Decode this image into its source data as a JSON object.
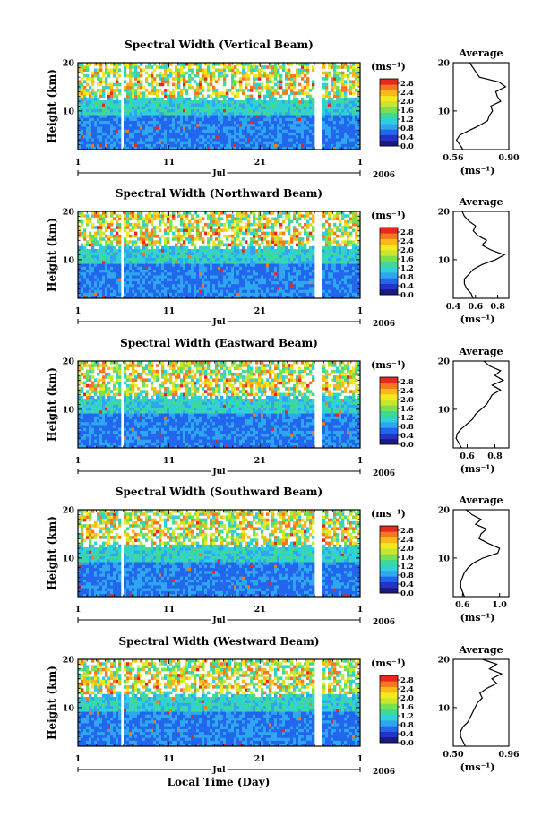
{
  "figure": {
    "xlabel": "Local Time (Day)",
    "month_label": "Jul",
    "year_label": "2006",
    "x_tick_labels": [
      "1",
      "11",
      "21",
      "1"
    ],
    "y_tick_labels": [
      "10",
      "20"
    ],
    "ylabel": "Height (km)",
    "unit_label": "(ms⁻¹)",
    "avg_title": "Average",
    "avg_unit_label": "(ms⁻¹)",
    "colorbar_ticks": [
      "0.0",
      "0.4",
      "0.8",
      "1.2",
      "1.6",
      "2.0",
      "2.4",
      "2.8"
    ],
    "colorscale": [
      "#1a1a80",
      "#2233c8",
      "#2266ee",
      "#2ea6f0",
      "#30d0d8",
      "#40d898",
      "#7ae050",
      "#c8e630",
      "#f6e820",
      "#fbb81a",
      "#f6781e",
      "#e8281e"
    ]
  },
  "chart_data": [
    {
      "type": "heatmap",
      "title": "Spectral Width (Vertical Beam)",
      "x_range_days": [
        1,
        32
      ],
      "y_range_km": [
        2,
        20
      ],
      "color_range": [
        0.0,
        3.0
      ],
      "average_profile": {
        "xlim": [
          0.56,
          0.9
        ],
        "x_tick_labels": [
          "0.56",
          "0.90"
        ],
        "height_km": [
          2,
          3,
          4,
          5,
          6,
          7,
          8,
          9,
          10,
          11,
          12,
          13,
          14,
          15,
          16,
          17,
          18,
          19,
          20
        ],
        "value": [
          0.62,
          0.6,
          0.58,
          0.6,
          0.66,
          0.72,
          0.77,
          0.78,
          0.8,
          0.79,
          0.85,
          0.83,
          0.82,
          0.88,
          0.84,
          0.72,
          0.7,
          0.68,
          0.66
        ]
      }
    },
    {
      "type": "heatmap",
      "title": "Spectral Width (Northward Beam)",
      "x_range_days": [
        1,
        32
      ],
      "y_range_km": [
        2,
        20
      ],
      "color_range": [
        0.0,
        3.0
      ],
      "average_profile": {
        "xlim": [
          0.4,
          0.9
        ],
        "x_tick_labels": [
          "0.4",
          "0.6",
          "0.8"
        ],
        "height_km": [
          2,
          3,
          4,
          5,
          6,
          7,
          8,
          9,
          10,
          11,
          12,
          13,
          14,
          15,
          16,
          17,
          18,
          19,
          20
        ],
        "value": [
          0.58,
          0.56,
          0.52,
          0.5,
          0.5,
          0.54,
          0.58,
          0.66,
          0.78,
          0.86,
          0.74,
          0.66,
          0.7,
          0.62,
          0.58,
          0.6,
          0.54,
          0.5,
          0.48
        ]
      }
    },
    {
      "type": "heatmap",
      "title": "Spectral Width (Eastward Beam)",
      "x_range_days": [
        1,
        32
      ],
      "y_range_km": [
        2,
        20
      ],
      "color_range": [
        0.0,
        3.0
      ],
      "average_profile": {
        "xlim": [
          0.5,
          0.9
        ],
        "x_tick_labels": [
          "0.6",
          "0.8"
        ],
        "height_km": [
          2,
          3,
          4,
          5,
          6,
          7,
          8,
          9,
          10,
          11,
          12,
          13,
          14,
          15,
          16,
          17,
          18,
          19,
          20
        ],
        "value": [
          0.56,
          0.54,
          0.52,
          0.53,
          0.56,
          0.6,
          0.64,
          0.66,
          0.7,
          0.74,
          0.76,
          0.78,
          0.84,
          0.78,
          0.86,
          0.8,
          0.84,
          0.76,
          0.72
        ]
      }
    },
    {
      "type": "heatmap",
      "title": "Spectral Width (Southward Beam)",
      "x_range_days": [
        1,
        32
      ],
      "y_range_km": [
        2,
        20
      ],
      "color_range": [
        0.0,
        3.0
      ],
      "average_profile": {
        "xlim": [
          0.5,
          1.1
        ],
        "x_tick_labels": [
          "0.6",
          "1.0"
        ],
        "height_km": [
          2,
          3,
          4,
          5,
          6,
          7,
          8,
          9,
          10,
          11,
          12,
          13,
          14,
          15,
          16,
          17,
          18,
          19,
          20
        ],
        "value": [
          0.62,
          0.6,
          0.58,
          0.58,
          0.6,
          0.62,
          0.66,
          0.72,
          0.82,
          0.98,
          1.0,
          0.88,
          0.78,
          0.8,
          0.86,
          0.74,
          0.8,
          0.7,
          0.64
        ]
      }
    },
    {
      "type": "heatmap",
      "title": "Spectral Width (Westward Beam)",
      "x_range_days": [
        1,
        32
      ],
      "y_range_km": [
        2,
        20
      ],
      "color_range": [
        0.0,
        3.0
      ],
      "average_profile": {
        "xlim": [
          0.5,
          0.96
        ],
        "x_tick_labels": [
          "0.50",
          "0.96"
        ],
        "height_km": [
          2,
          3,
          4,
          5,
          6,
          7,
          8,
          9,
          10,
          11,
          12,
          13,
          14,
          15,
          16,
          17,
          18,
          19,
          20
        ],
        "value": [
          0.6,
          0.58,
          0.56,
          0.56,
          0.58,
          0.62,
          0.64,
          0.66,
          0.68,
          0.7,
          0.74,
          0.72,
          0.78,
          0.86,
          0.82,
          0.9,
          0.8,
          0.86,
          0.74
        ]
      }
    }
  ]
}
